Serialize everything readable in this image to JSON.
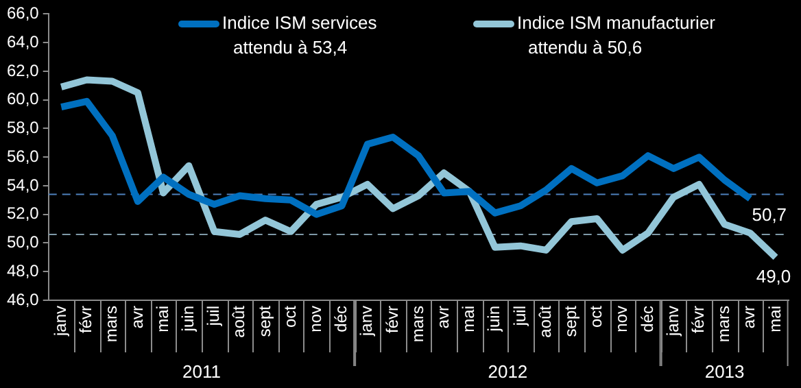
{
  "chart_data": {
    "type": "line",
    "categories": [
      "janv",
      "févr",
      "mars",
      "avr",
      "mai",
      "juin",
      "juil",
      "août",
      "sept",
      "oct",
      "nov",
      "déc",
      "janv",
      "févr",
      "mars",
      "avr",
      "mai",
      "juin",
      "juil",
      "août",
      "sept",
      "oct",
      "nov",
      "déc",
      "janv",
      "févr",
      "mars",
      "avr",
      "mai"
    ],
    "series": [
      {
        "name": "Indice ISM services",
        "color": "#0070c0",
        "values": [
          59.5,
          59.9,
          57.5,
          52.9,
          54.6,
          53.4,
          52.7,
          53.3,
          53.1,
          53.0,
          52.0,
          52.6,
          56.9,
          57.4,
          56.1,
          53.5,
          53.6,
          52.1,
          52.6,
          53.7,
          55.2,
          54.2,
          54.7,
          56.1,
          55.2,
          56.0,
          54.4,
          53.1,
          null
        ]
      },
      {
        "name": "Indice ISM manufacturier",
        "color": "#93c6d8",
        "values": [
          60.9,
          61.4,
          61.3,
          60.5,
          53.5,
          55.4,
          50.8,
          50.6,
          51.6,
          50.8,
          52.7,
          53.2,
          54.1,
          52.4,
          53.3,
          54.9,
          53.6,
          49.7,
          49.8,
          49.5,
          51.5,
          51.7,
          49.5,
          50.7,
          53.2,
          54.1,
          51.3,
          50.7,
          49.0
        ],
        "value_labels": [
          null,
          null,
          null,
          null,
          null,
          null,
          null,
          null,
          null,
          null,
          null,
          null,
          null,
          null,
          null,
          null,
          null,
          null,
          null,
          null,
          null,
          null,
          null,
          null,
          null,
          null,
          null,
          "50,7",
          "49,0"
        ]
      }
    ],
    "ylim": [
      46,
      66
    ],
    "yticks": [
      {
        "value": 46,
        "label": "46,0"
      },
      {
        "value": 48,
        "label": "48,0"
      },
      {
        "value": 50,
        "label": "50,0"
      },
      {
        "value": 52,
        "label": "52,0"
      },
      {
        "value": 54,
        "label": "54,0"
      },
      {
        "value": 56,
        "label": "56,0"
      },
      {
        "value": 58,
        "label": "58,0"
      },
      {
        "value": 60,
        "label": "60,0"
      },
      {
        "value": 62,
        "label": "62,0"
      },
      {
        "value": 64,
        "label": "64,0"
      },
      {
        "value": 66,
        "label": "66,0"
      }
    ],
    "ref_lines": [
      {
        "axis": "y",
        "value": 53.4,
        "color": "#4f81bd",
        "line_style": "dashed"
      },
      {
        "axis": "y",
        "value": 50.6,
        "color": "#7f9aa8",
        "line_style": "dashed"
      }
    ],
    "annotations": [
      "attendu à 53,4",
      "attendu à 50,6",
      "2011",
      "2012",
      "2013"
    ],
    "legend": "top",
    "marker": "none",
    "line_style": "solid",
    "grid": false
  }
}
